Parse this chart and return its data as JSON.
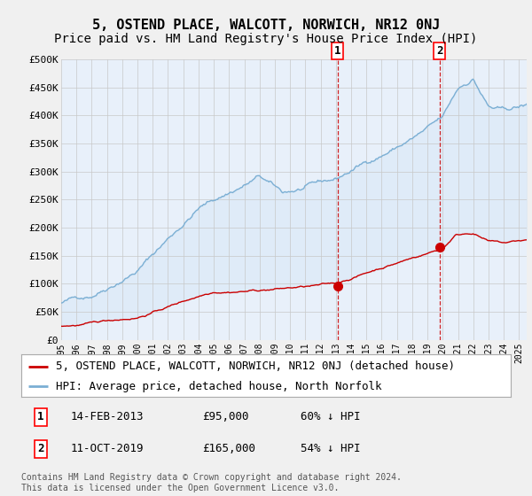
{
  "title": "5, OSTEND PLACE, WALCOTT, NORWICH, NR12 0NJ",
  "subtitle": "Price paid vs. HM Land Registry's House Price Index (HPI)",
  "ylim": [
    0,
    500000
  ],
  "yticks": [
    0,
    50000,
    100000,
    150000,
    200000,
    250000,
    300000,
    350000,
    400000,
    450000,
    500000
  ],
  "ytick_labels": [
    "£0",
    "£50K",
    "£100K",
    "£150K",
    "£200K",
    "£250K",
    "£300K",
    "£350K",
    "£400K",
    "£450K",
    "£500K"
  ],
  "hpi_color": "#7bafd4",
  "price_color": "#cc0000",
  "vline_color": "#cc0000",
  "fill_color": "#d0e4f5",
  "background_color": "#e8f0fa",
  "grid_color": "#c8c8c8",
  "legend_label_price": "5, OSTEND PLACE, WALCOTT, NORWICH, NR12 0NJ (detached house)",
  "legend_label_hpi": "HPI: Average price, detached house, North Norfolk",
  "annotation1_date": "14-FEB-2013",
  "annotation1_price": "£95,000",
  "annotation1_pct": "60% ↓ HPI",
  "annotation2_date": "11-OCT-2019",
  "annotation2_price": "£165,000",
  "annotation2_pct": "54% ↓ HPI",
  "vline1_x": 2013.1,
  "vline2_x": 2019.78,
  "sale1_x": 2013.1,
  "sale1_y": 95000,
  "sale2_x": 2019.78,
  "sale2_y": 165000,
  "copyright_text": "Contains HM Land Registry data © Crown copyright and database right 2024.\nThis data is licensed under the Open Government Licence v3.0.",
  "title_fontsize": 11,
  "subtitle_fontsize": 10,
  "tick_fontsize": 8,
  "legend_fontsize": 9,
  "annot_fontsize": 9,
  "copyright_fontsize": 7,
  "xlim_start": 1995,
  "xlim_end": 2025.5
}
